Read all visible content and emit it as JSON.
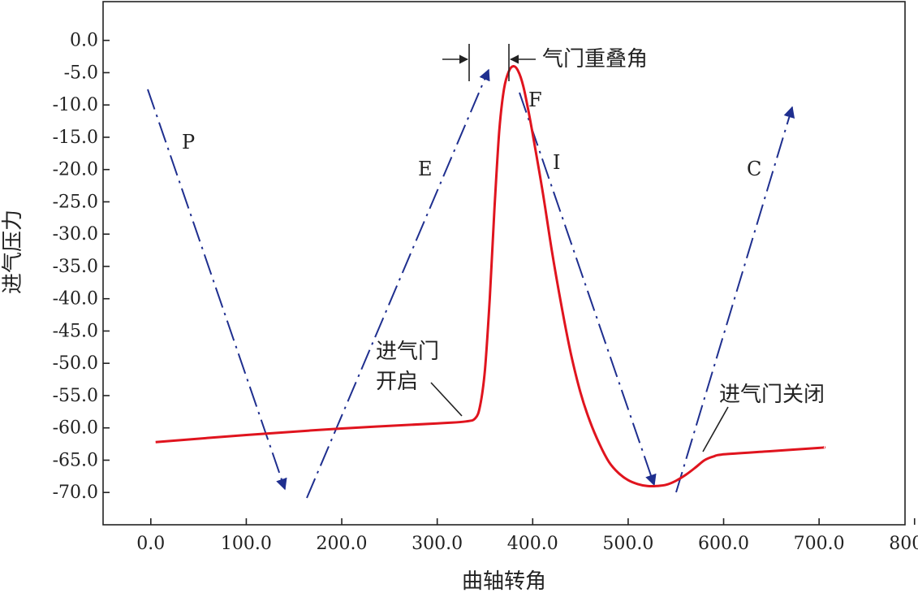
{
  "chart_data": {
    "type": "line",
    "title": "",
    "xlabel": "曲轴转角",
    "ylabel": "进气压力",
    "xlim": [
      -50,
      790
    ],
    "ylim": [
      -75,
      6
    ],
    "x_ticks": [
      "0.0",
      "100.0",
      "200.0",
      "300.0",
      "400.0",
      "500.0",
      "600.0",
      "700.0",
      "800.0"
    ],
    "y_ticks": [
      "0.0",
      "-5.0",
      "-10.0",
      "-15.0",
      "-20.0",
      "-25.0",
      "-30.0",
      "-35.0",
      "-40.0",
      "-45.0",
      "-50.0",
      "-55.0",
      "-60.0",
      "-65.0",
      "-70.0"
    ],
    "grid": false,
    "legend": "none",
    "colors": {
      "curve": "#e0141e",
      "arrows": "#1f2f8f",
      "axis": "#222222"
    },
    "series": [
      {
        "x": [
          5,
          100,
          200,
          300,
          330,
          340,
          345,
          350,
          355,
          360,
          365,
          370,
          375,
          380,
          385,
          390,
          395,
          400,
          410,
          420,
          430,
          440,
          450,
          460,
          470,
          480,
          490,
          500,
          510,
          520,
          530,
          540,
          550,
          560,
          570,
          580,
          590,
          600,
          650,
          700,
          705
        ],
        "y": [
          -62.2,
          -61.1,
          -60.1,
          -59.3,
          -59.0,
          -58.5,
          -56.5,
          -51.0,
          -40.0,
          -26.0,
          -14.0,
          -7.5,
          -4.8,
          -4.0,
          -4.8,
          -7.0,
          -10.5,
          -14.5,
          -23.0,
          -32.5,
          -41.0,
          -48.5,
          -54.5,
          -59.0,
          -62.5,
          -65.3,
          -67.0,
          -68.1,
          -68.7,
          -69.0,
          -69.0,
          -68.8,
          -68.2,
          -67.3,
          -66.2,
          -65.0,
          -64.4,
          -64.1,
          -63.6,
          -63.1,
          -63.0
        ]
      }
    ],
    "annotations": {
      "overlap_label": "气门重叠角",
      "open_label_line1": "进气门",
      "open_label_line2": "开启",
      "close_label": "进气门关闭",
      "stroke_labels": [
        "P",
        "E",
        "F",
        "I",
        "C"
      ]
    }
  }
}
